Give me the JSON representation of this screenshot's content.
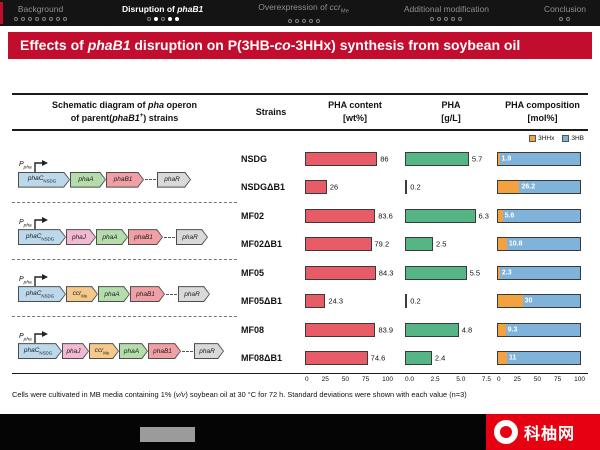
{
  "nav": {
    "items": [
      {
        "label": [
          {
            "t": "Background"
          }
        ],
        "active": false,
        "dots": [
          false,
          false,
          false,
          false,
          false,
          false,
          false,
          false
        ]
      },
      {
        "label": [
          {
            "t": "Disruption of "
          },
          {
            "t": "phaB1",
            "i": true
          }
        ],
        "active": true,
        "dots": [
          false,
          true,
          false,
          true,
          true
        ]
      },
      {
        "label": [
          {
            "t": "Overexpression of "
          },
          {
            "t": "ccr",
            "i": true
          },
          {
            "t": "Me",
            "sub": true
          }
        ],
        "active": false,
        "dots": [
          false,
          false,
          false,
          false,
          false
        ]
      },
      {
        "label": [
          {
            "t": "Additional modification"
          }
        ],
        "active": false,
        "dots": [
          false,
          false,
          false,
          false,
          false
        ]
      },
      {
        "label": [
          {
            "t": "Conclusion"
          }
        ],
        "active": false,
        "dots": [
          false,
          false
        ]
      }
    ]
  },
  "title": [
    {
      "t": "Effects of "
    },
    {
      "t": "phaB1",
      "i": true
    },
    {
      "t": " disruption on P(3HB-"
    },
    {
      "t": "co",
      "i": true
    },
    {
      "t": "-3HHx) synthesis from soybean oil"
    }
  ],
  "headers": {
    "schematic1": [
      {
        "t": "Schematic diagram of "
      },
      {
        "t": "pha",
        "i": true
      },
      {
        "t": " operon"
      }
    ],
    "schematic2": [
      {
        "t": "of parent("
      },
      {
        "t": "phaB1",
        "i": true
      },
      {
        "t": "+",
        "sup": true
      },
      {
        "t": ") strains"
      }
    ],
    "strains": [
      {
        "t": "Strains"
      }
    ],
    "content1": [
      {
        "t": "PHA content"
      }
    ],
    "content2": [
      {
        "t": "[wt%]"
      }
    ],
    "gl1": [
      {
        "t": "PHA"
      }
    ],
    "gl2": [
      {
        "t": "[g/L]"
      }
    ],
    "comp1": [
      {
        "t": "PHA composition"
      }
    ],
    "comp2": [
      {
        "t": "[mol%]"
      }
    ]
  },
  "legend": [
    {
      "label": "3HHx",
      "color": "#f2a23f"
    },
    {
      "label": "3HB",
      "color": "#7fb3da"
    }
  ],
  "groups": [
    {
      "promoter": [
        {
          "t": "P",
          "i": true
        },
        {
          "t": "pha",
          "i": true,
          "sub": true
        }
      ],
      "genes": [
        {
          "label": [
            {
              "t": "phaC",
              "i": true
            },
            {
              "t": "NSDG",
              "sub": true
            }
          ],
          "color": "#bcd9ec",
          "w": 52
        },
        {
          "label": [
            {
              "t": "phaA",
              "i": true
            }
          ],
          "color": "#b5dcab",
          "w": 36
        },
        {
          "label": [
            {
              "t": "phaB1",
              "i": true
            }
          ],
          "color": "#f0a0a4",
          "w": 38
        },
        {
          "dash": true
        },
        {
          "label": [
            {
              "t": "phaR",
              "i": true
            }
          ],
          "color": "#d9d9d9",
          "w": 34
        }
      ],
      "strains": [
        "NSDG",
        "NSDGΔB1"
      ]
    },
    {
      "promoter": [
        {
          "t": "P",
          "i": true
        },
        {
          "t": "pha",
          "i": true,
          "sub": true
        }
      ],
      "genes": [
        {
          "label": [
            {
              "t": "phaC",
              "i": true
            },
            {
              "t": "NSDG",
              "sub": true
            }
          ],
          "color": "#bcd9ec",
          "w": 48
        },
        {
          "label": [
            {
              "t": "phaJ",
              "i": true
            }
          ],
          "color": "#f2bad2",
          "w": 30
        },
        {
          "label": [
            {
              "t": "phaA",
              "i": true
            }
          ],
          "color": "#b5dcab",
          "w": 32
        },
        {
          "label": [
            {
              "t": "phaB1",
              "i": true
            }
          ],
          "color": "#f0a0a4",
          "w": 35
        },
        {
          "dash": true
        },
        {
          "label": [
            {
              "t": "phaR",
              "i": true
            }
          ],
          "color": "#d9d9d9",
          "w": 32
        }
      ],
      "strains": [
        "MF02",
        "MF02ΔB1"
      ]
    },
    {
      "promoter": [
        {
          "t": "P",
          "i": true
        },
        {
          "t": "pha",
          "i": true,
          "sub": true
        }
      ],
      "genes": [
        {
          "label": [
            {
              "t": "phaC",
              "i": true
            },
            {
              "t": "NSDG",
              "sub": true
            }
          ],
          "color": "#bcd9ec",
          "w": 48
        },
        {
          "label": [
            {
              "t": "ccr",
              "i": true
            },
            {
              "t": "Me",
              "sub": true
            }
          ],
          "color": "#f5c98c",
          "w": 32
        },
        {
          "label": [
            {
              "t": "phaA",
              "i": true
            }
          ],
          "color": "#b5dcab",
          "w": 32
        },
        {
          "label": [
            {
              "t": "phaB1",
              "i": true
            }
          ],
          "color": "#f0a0a4",
          "w": 35
        },
        {
          "dash": true
        },
        {
          "label": [
            {
              "t": "phaR",
              "i": true
            }
          ],
          "color": "#d9d9d9",
          "w": 32
        }
      ],
      "strains": [
        "MF05",
        "MF05ΔB1"
      ]
    },
    {
      "promoter": [
        {
          "t": "P",
          "i": true
        },
        {
          "t": "pha",
          "i": true,
          "sub": true
        }
      ],
      "genes": [
        {
          "label": [
            {
              "t": "phaC",
              "i": true
            },
            {
              "t": "NSDG",
              "sub": true
            }
          ],
          "color": "#bcd9ec",
          "w": 44
        },
        {
          "label": [
            {
              "t": "phaJ",
              "i": true
            }
          ],
          "color": "#f2bad2",
          "w": 27
        },
        {
          "label": [
            {
              "t": "ccr",
              "i": true
            },
            {
              "t": "Me",
              "sub": true
            }
          ],
          "color": "#f5c98c",
          "w": 30
        },
        {
          "label": [
            {
              "t": "phaA",
              "i": true
            }
          ],
          "color": "#b5dcab",
          "w": 29
        },
        {
          "label": [
            {
              "t": "phaB1",
              "i": true
            }
          ],
          "color": "#f0a0a4",
          "w": 33
        },
        {
          "dash": true
        },
        {
          "label": [
            {
              "t": "phaR",
              "i": true
            }
          ],
          "color": "#d9d9d9",
          "w": 30
        }
      ],
      "strains": [
        "MF08",
        "MF08ΔB1"
      ]
    }
  ],
  "axes": {
    "content": [
      "0",
      "25",
      "50",
      "75",
      "100"
    ],
    "gl": [
      "0.0",
      "2.5",
      "5.0",
      "7.5"
    ],
    "comp": [
      "0",
      "25",
      "50",
      "75",
      "100"
    ]
  },
  "chart_data": [
    {
      "type": "bar",
      "title": "PHA content [wt%]",
      "categories": [
        "NSDG",
        "NSDGΔB1",
        "MF02",
        "MF02ΔB1",
        "MF05",
        "MF05ΔB1",
        "MF08",
        "MF08ΔB1"
      ],
      "values": [
        86,
        26,
        83.6,
        79.2,
        84.3,
        24.3,
        83.9,
        74.6
      ],
      "xlim": [
        0,
        100
      ],
      "ticks": [
        0,
        25,
        50,
        75,
        100
      ],
      "orientation": "horizontal",
      "bar_color": "#e75c66"
    },
    {
      "type": "bar",
      "title": "PHA [g/L]",
      "categories": [
        "NSDG",
        "NSDGΔB1",
        "MF02",
        "MF02ΔB1",
        "MF05",
        "MF05ΔB1",
        "MF08",
        "MF08ΔB1"
      ],
      "values": [
        5.7,
        0.2,
        6.3,
        2.5,
        5.5,
        0.2,
        4.8,
        2.4
      ],
      "xlim": [
        0,
        7.5
      ],
      "ticks": [
        0,
        2.5,
        5,
        7.5
      ],
      "orientation": "horizontal",
      "bar_color": "#55b585"
    },
    {
      "type": "stacked-bar",
      "title": "PHA composition [mol%]",
      "categories": [
        "NSDG",
        "NSDGΔB1",
        "MF02",
        "MF02ΔB1",
        "MF05",
        "MF05ΔB1",
        "MF08",
        "MF08ΔB1"
      ],
      "series": [
        {
          "name": "3HHx",
          "color": "#f2a23f",
          "values": [
            1.9,
            26.2,
            5.6,
            10.8,
            2.3,
            30,
            9.3,
            11
          ]
        },
        {
          "name": "3HB",
          "color": "#7fb3da",
          "values": [
            98.1,
            73.8,
            94.4,
            89.2,
            97.7,
            70,
            90.7,
            89
          ]
        }
      ],
      "xlim": [
        0,
        100
      ],
      "ticks": [
        0,
        25,
        50,
        75,
        100
      ],
      "orientation": "horizontal"
    }
  ],
  "footnote": [
    {
      "t": "Cells were cultivated in MB media containing 1% ("
    },
    {
      "t": "v/v",
      "i": true
    },
    {
      "t": ") soybean oil at 30 °C for 72 h. Standard deviations were shown with each value (n=3)"
    }
  ],
  "brand": {
    "text": "科柚网"
  }
}
